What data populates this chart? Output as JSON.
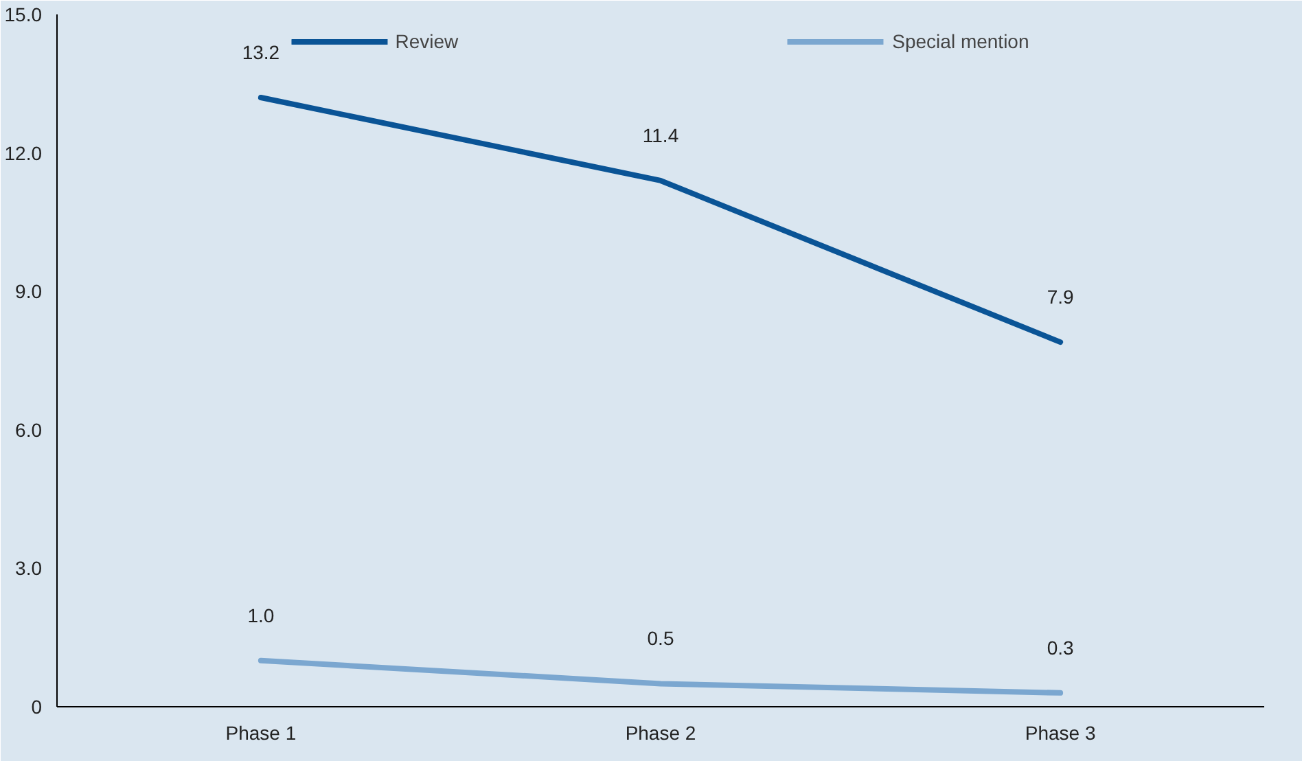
{
  "chart_data": {
    "type": "line",
    "categories": [
      "Phase 1",
      "Phase 2",
      "Phase 3"
    ],
    "series": [
      {
        "name": "Review",
        "color": "#0a5496",
        "values": [
          13.2,
          11.4,
          7.9
        ],
        "value_labels": [
          "13.2",
          "11.4",
          "7.9"
        ]
      },
      {
        "name": "Special mention",
        "color": "#7ba7d0",
        "values": [
          1.0,
          0.5,
          0.3
        ],
        "value_labels": [
          "1.0",
          "0.5",
          "0.3"
        ]
      }
    ],
    "ylim": [
      0,
      15
    ],
    "yticks": [
      0,
      {
        "value": 3,
        "label": "3.0"
      },
      {
        "value": 6,
        "label": "6.0"
      },
      {
        "value": 9,
        "label": "9.0"
      },
      {
        "value": 12,
        "label": "12.0"
      },
      {
        "value": 15,
        "label": "15.0"
      }
    ],
    "legend": "top",
    "grid": false,
    "marker": "none",
    "line_style": "solid"
  }
}
